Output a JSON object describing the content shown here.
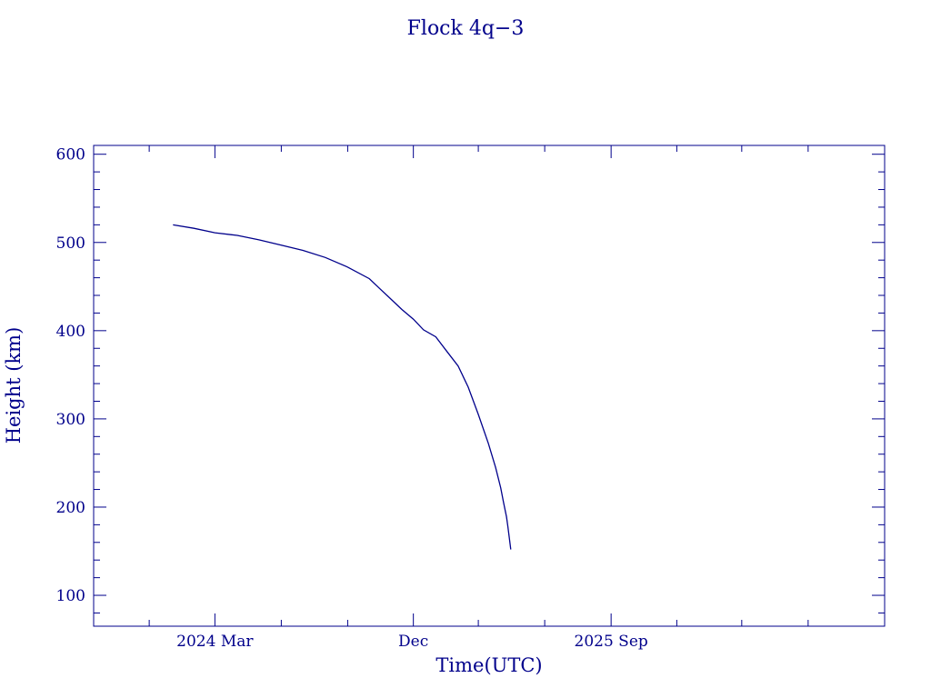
{
  "chart_data": {
    "type": "line",
    "title": "Flock 4q−3",
    "xlabel": "Time(UTC)",
    "ylabel": "Height (km)",
    "xlim": [
      "2023-09-15",
      "2026-09-15"
    ],
    "ylim": [
      65,
      610
    ],
    "yticks": [
      100,
      200,
      300,
      400,
      500,
      600
    ],
    "xticks": [
      {
        "date": "2024-03-01",
        "label": "2024 Mar"
      },
      {
        "date": "2024-12-01",
        "label": "Dec"
      },
      {
        "date": "2025-09-01",
        "label": "2025 Sep"
      }
    ],
    "grid": false,
    "color": "#00008b",
    "series": [
      {
        "x": [
          "2024-01-03",
          "2024-02-01",
          "2024-03-01",
          "2024-04-01",
          "2024-05-01",
          "2024-06-01",
          "2024-07-01",
          "2024-08-01",
          "2024-09-01",
          "2024-10-01",
          "2024-10-15",
          "2024-11-01",
          "2024-11-15",
          "2024-12-01",
          "2024-12-15",
          "2025-01-01",
          "2025-01-15",
          "2025-02-01",
          "2025-02-15",
          "2025-03-01",
          "2025-03-15",
          "2025-03-25",
          "2025-04-01",
          "2025-04-05",
          "2025-04-09",
          "2025-04-11",
          "2025-04-13",
          "2025-04-15"
        ],
        "y": [
          520,
          516,
          511,
          508,
          503,
          497,
          491,
          483,
          472,
          459,
          448,
          435,
          424,
          413,
          401,
          393,
          378,
          360,
          336,
          305,
          272,
          245,
          222,
          205,
          189,
          178,
          165,
          152
        ]
      }
    ]
  }
}
